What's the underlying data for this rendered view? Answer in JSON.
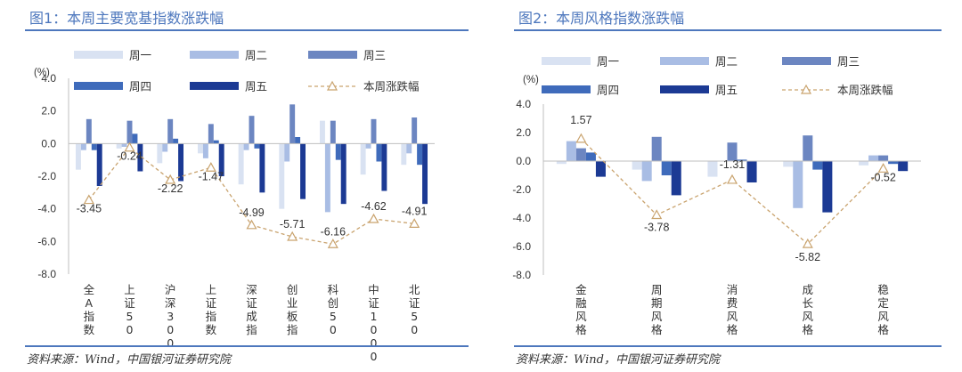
{
  "source_text": "资料来源：Wind，中国银河证券研究院",
  "colors": {
    "周一": "#d9e2f2",
    "周二": "#a9bde4",
    "周三": "#6c86c1",
    "周四": "#3f6bbb",
    "周五": "#1c3a94",
    "本周涨跌幅": "#c9a36e",
    "title": "#4d77bd"
  },
  "chart_data": [
    {
      "type": "bar",
      "title": "图1：本周主要宽基指数涨跌幅",
      "ylabel": "(%)",
      "ylim": [
        -8.0,
        4.0
      ],
      "yticks": [
        4.0,
        2.0,
        0.0,
        -2.0,
        -4.0,
        -6.0,
        -8.0
      ],
      "ytick_labels": [
        "4.0",
        "2.0",
        "0.0",
        "-2.0",
        "-4.0",
        "-6.0",
        "-8.0"
      ],
      "categories": [
        "全A指数",
        "上证50",
        "沪深300",
        "上证指数",
        "深证成指",
        "创业板指",
        "科创50",
        "中证1000",
        "北证50"
      ],
      "series": [
        {
          "name": "周一",
          "kind": "bar",
          "values": [
            -1.6,
            -0.3,
            -1.2,
            -0.6,
            -2.5,
            -4.0,
            1.4,
            -1.9,
            -1.3
          ]
        },
        {
          "name": "周二",
          "kind": "bar",
          "values": [
            -0.4,
            -0.2,
            -0.5,
            -0.9,
            -0.4,
            -1.1,
            -4.2,
            -0.3,
            -0.6
          ]
        },
        {
          "name": "周三",
          "kind": "bar",
          "values": [
            1.5,
            1.4,
            1.5,
            1.2,
            1.7,
            2.4,
            1.4,
            1.5,
            1.6
          ]
        },
        {
          "name": "周四",
          "kind": "bar",
          "values": [
            -0.4,
            0.6,
            0.3,
            0.2,
            -0.3,
            0.4,
            -1.0,
            -1.1,
            -1.3
          ]
        },
        {
          "name": "周五",
          "kind": "bar",
          "values": [
            -2.6,
            -1.7,
            -2.3,
            -2.0,
            -3.0,
            -3.4,
            -3.7,
            -2.9,
            -3.7
          ]
        },
        {
          "name": "本周涨跌幅",
          "kind": "line",
          "values": [
            -3.45,
            -0.24,
            -2.22,
            -1.47,
            -4.99,
            -5.71,
            -6.16,
            -4.62,
            -4.91
          ]
        }
      ],
      "data_labels": [
        "-3.45",
        "-0.24",
        "-2.22",
        "-1.47",
        "-4.99",
        "-5.71",
        "-6.16",
        "-4.62",
        "-4.91"
      ]
    },
    {
      "type": "bar",
      "title": "图2：本周风格指数涨跌幅",
      "ylabel": "(%)",
      "ylim": [
        -8.0,
        4.0
      ],
      "yticks": [
        4.0,
        2.0,
        0.0,
        -2.0,
        -4.0,
        -6.0,
        -8.0
      ],
      "ytick_labels": [
        "4.0",
        "2.0",
        "0.0",
        "-2.0",
        "-4.0",
        "-6.0",
        "-8.0"
      ],
      "categories": [
        "金融风格",
        "周期风格",
        "消费风格",
        "成长风格",
        "稳定风格"
      ],
      "series": [
        {
          "name": "周一",
          "kind": "bar",
          "values": [
            -0.2,
            -0.6,
            -1.1,
            -0.4,
            -0.3
          ]
        },
        {
          "name": "周二",
          "kind": "bar",
          "values": [
            1.4,
            -1.4,
            0.0,
            -3.3,
            0.4
          ]
        },
        {
          "name": "周三",
          "kind": "bar",
          "values": [
            0.9,
            1.7,
            1.3,
            1.8,
            0.4
          ]
        },
        {
          "name": "周四",
          "kind": "bar",
          "values": [
            0.6,
            -1.0,
            0.1,
            -0.6,
            -0.2
          ]
        },
        {
          "name": "周五",
          "kind": "bar",
          "values": [
            -1.1,
            -2.4,
            -1.5,
            -3.6,
            -0.7
          ]
        },
        {
          "name": "本周涨跌幅",
          "kind": "line",
          "values": [
            1.57,
            -3.78,
            -1.31,
            -5.82,
            -0.52
          ]
        }
      ],
      "data_labels": [
        "1.57",
        "-3.78",
        "-1.31",
        "-5.82",
        "-0.52"
      ]
    }
  ]
}
